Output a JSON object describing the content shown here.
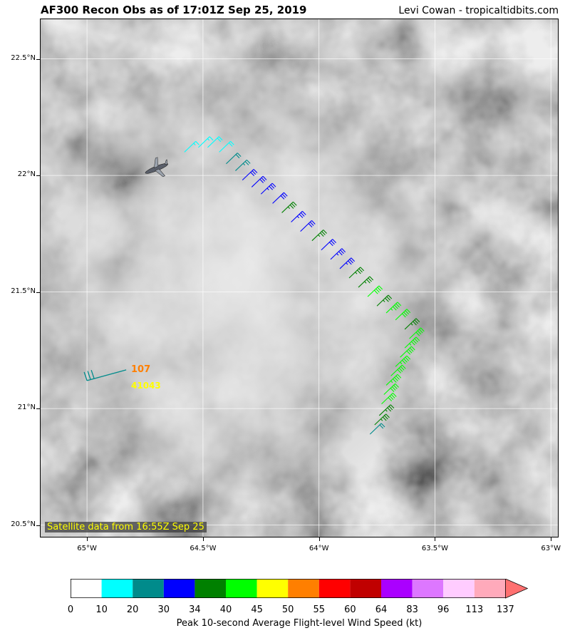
{
  "header": {
    "title": "AF300 Recon Obs as of 17:01Z Sep 25, 2019",
    "credit": "Levi Cowan - tropicaltidbits.com"
  },
  "map": {
    "lon_range": [
      -65.2,
      -62.97
    ],
    "lat_range": [
      20.45,
      22.67
    ],
    "y_ticks": [
      "22.5°N",
      "22°N",
      "21.5°N",
      "21°N",
      "20.5°N"
    ],
    "y_tick_values": [
      22.5,
      22.0,
      21.5,
      21.0,
      20.5
    ],
    "x_ticks": [
      "65°W",
      "64.5°W",
      "64°W",
      "63.5°W",
      "63°W"
    ],
    "x_tick_values": [
      -65.0,
      -64.5,
      -64.0,
      -63.5,
      -63.0
    ],
    "satellite_label": "Satellite data from 16:55Z Sep 25",
    "background": "grayscale infrared satellite imagery",
    "aircraft_icon": "plane-icon",
    "aircraft_position": {
      "lon": -64.7,
      "lat": 22.03
    }
  },
  "buoy": {
    "speed_label": "107",
    "station_label": "41043",
    "speed_color": "#ff7f00",
    "station_color": "#ffff00",
    "lon": -65.0,
    "lat": 21.12
  },
  "flight_track": {
    "points": [
      {
        "lon": -64.58,
        "lat": 22.1,
        "kt": 15
      },
      {
        "lon": -64.52,
        "lat": 22.12,
        "kt": 16
      },
      {
        "lon": -64.48,
        "lat": 22.12,
        "kt": 18
      },
      {
        "lon": -64.43,
        "lat": 22.1,
        "kt": 19
      },
      {
        "lon": -64.4,
        "lat": 22.05,
        "kt": 22
      },
      {
        "lon": -64.36,
        "lat": 22.02,
        "kt": 25
      },
      {
        "lon": -64.33,
        "lat": 21.98,
        "kt": 31
      },
      {
        "lon": -64.29,
        "lat": 21.95,
        "kt": 32
      },
      {
        "lon": -64.25,
        "lat": 21.92,
        "kt": 33
      },
      {
        "lon": -64.2,
        "lat": 21.88,
        "kt": 32
      },
      {
        "lon": -64.16,
        "lat": 21.84,
        "kt": 36
      },
      {
        "lon": -64.12,
        "lat": 21.8,
        "kt": 33
      },
      {
        "lon": -64.08,
        "lat": 21.76,
        "kt": 32
      },
      {
        "lon": -64.03,
        "lat": 21.72,
        "kt": 36
      },
      {
        "lon": -63.99,
        "lat": 21.68,
        "kt": 31
      },
      {
        "lon": -63.95,
        "lat": 21.64,
        "kt": 33
      },
      {
        "lon": -63.91,
        "lat": 21.6,
        "kt": 33
      },
      {
        "lon": -63.87,
        "lat": 21.56,
        "kt": 35
      },
      {
        "lon": -63.83,
        "lat": 21.52,
        "kt": 37
      },
      {
        "lon": -63.79,
        "lat": 21.48,
        "kt": 42
      },
      {
        "lon": -63.75,
        "lat": 21.44,
        "kt": 37
      },
      {
        "lon": -63.71,
        "lat": 21.41,
        "kt": 43
      },
      {
        "lon": -63.67,
        "lat": 21.38,
        "kt": 42
      },
      {
        "lon": -63.63,
        "lat": 21.34,
        "kt": 36
      },
      {
        "lon": -63.61,
        "lat": 21.3,
        "kt": 42
      },
      {
        "lon": -63.63,
        "lat": 21.26,
        "kt": 43
      },
      {
        "lon": -63.65,
        "lat": 21.22,
        "kt": 42
      },
      {
        "lon": -63.67,
        "lat": 21.18,
        "kt": 43
      },
      {
        "lon": -63.69,
        "lat": 21.14,
        "kt": 42
      },
      {
        "lon": -63.71,
        "lat": 21.1,
        "kt": 43
      },
      {
        "lon": -63.72,
        "lat": 21.06,
        "kt": 42
      },
      {
        "lon": -63.73,
        "lat": 21.02,
        "kt": 41
      },
      {
        "lon": -63.74,
        "lat": 20.97,
        "kt": 36
      },
      {
        "lon": -63.76,
        "lat": 20.93,
        "kt": 35
      },
      {
        "lon": -63.78,
        "lat": 20.89,
        "kt": 22
      }
    ]
  },
  "colorbar": {
    "title": "Peak 10-second Average Flight-level Wind Speed (kt)",
    "ticks": [
      "0",
      "10",
      "20",
      "30",
      "34",
      "40",
      "45",
      "50",
      "55",
      "60",
      "64",
      "83",
      "96",
      "113",
      "137"
    ],
    "colors": [
      "#ffffff",
      "#00ffff",
      "#008b8b",
      "#0000ff",
      "#008000",
      "#00ff00",
      "#ffff00",
      "#ff7f00",
      "#ff0000",
      "#c00000",
      "#aa00ff",
      "#dd77ff",
      "#ffccff",
      "#ffaabb",
      "#ff7070"
    ]
  }
}
